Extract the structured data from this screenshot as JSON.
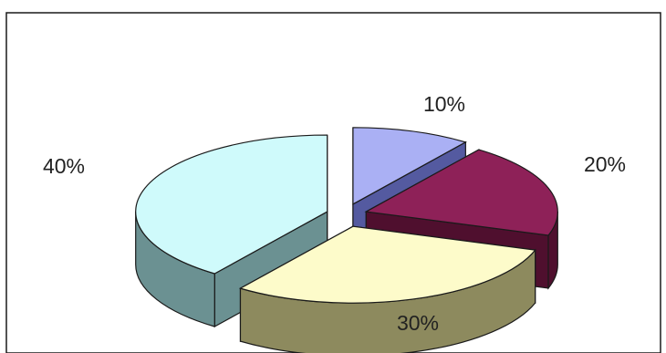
{
  "chart_data": {
    "type": "pie",
    "style": "3d-exploded",
    "title": "",
    "slices": [
      {
        "label": "10%",
        "value": 10,
        "top_color": "#aab0f4",
        "side_color": "#545aa0"
      },
      {
        "label": "20%",
        "value": 20,
        "top_color": "#8e2158",
        "side_color": "#4f0f2e"
      },
      {
        "label": "30%",
        "value": 30,
        "top_color": "#fdfbca",
        "side_color": "#8d8a5e"
      },
      {
        "label": "40%",
        "value": 40,
        "top_color": "#cffafb",
        "side_color": "#6b9192"
      }
    ],
    "legend": "none"
  }
}
